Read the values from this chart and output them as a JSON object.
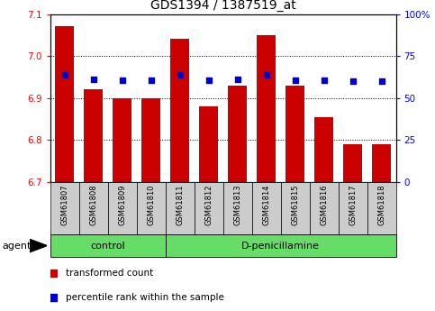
{
  "title": "GDS1394 / 1387519_at",
  "samples": [
    "GSM61807",
    "GSM61808",
    "GSM61809",
    "GSM61810",
    "GSM61811",
    "GSM61812",
    "GSM61813",
    "GSM61814",
    "GSM61815",
    "GSM61816",
    "GSM61817",
    "GSM61818"
  ],
  "red_values": [
    7.07,
    6.92,
    6.9,
    6.9,
    7.04,
    6.88,
    6.93,
    7.05,
    6.93,
    6.855,
    6.79,
    6.79
  ],
  "blue_values": [
    6.955,
    6.945,
    6.943,
    6.942,
    6.955,
    6.943,
    6.944,
    6.956,
    6.943,
    6.942,
    6.94,
    6.94
  ],
  "y_min": 6.7,
  "y_max": 7.1,
  "y_ticks": [
    6.7,
    6.8,
    6.9,
    7.0,
    7.1
  ],
  "y_right_ticks": [
    0,
    25,
    50,
    75,
    100
  ],
  "bar_color": "#cc0000",
  "dot_color": "#0000cc",
  "bar_bottom": 6.7,
  "control_count": 4,
  "group_labels": [
    "control",
    "D-penicillamine"
  ],
  "group_color": "#66dd66",
  "tick_label_bg": "#cccccc",
  "legend_red_label": "transformed count",
  "legend_blue_label": "percentile rank within the sample",
  "agent_label": "agent"
}
